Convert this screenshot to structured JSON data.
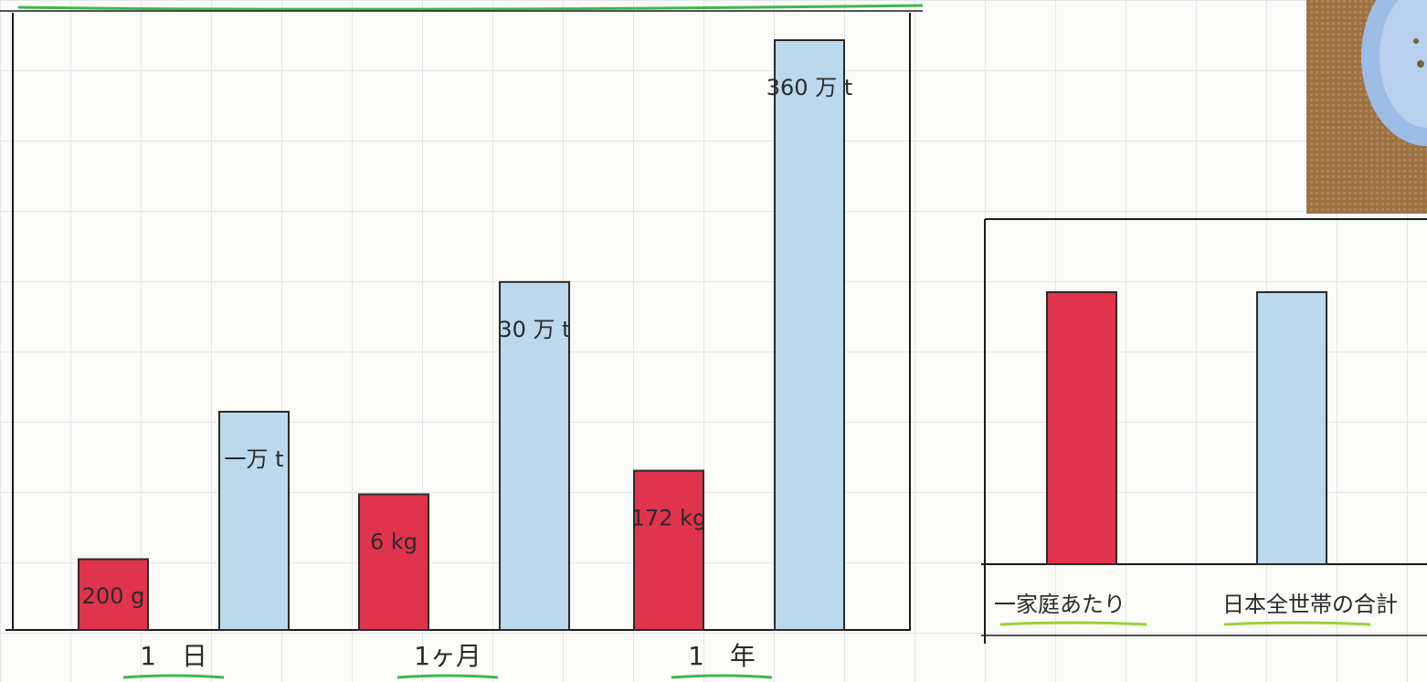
{
  "chart_data": [
    {
      "type": "bar",
      "categories": [
        "1　日",
        "1ヶ月",
        "1　年"
      ],
      "series": [
        {
          "values": [
            200,
            6,
            172
          ],
          "value_labels": [
            "200 g",
            "6 kg",
            "172 kg"
          ],
          "color": "#e0344c"
        },
        {
          "values": [
            1,
            30,
            360
          ],
          "value_labels": [
            "一万 t",
            "30 万 t",
            "360 万 t"
          ],
          "color": "#bcd8ec"
        }
      ],
      "bar_heights_relative": [
        [
          0.12,
          0.37
        ],
        [
          0.23,
          0.59
        ],
        [
          0.27,
          1.0
        ]
      ],
      "grid": true
    },
    {
      "type": "bar",
      "categories": [
        "一家庭あたり",
        "日本全世帯の合計"
      ],
      "values": [
        1,
        1
      ],
      "colors": [
        "#e0344c",
        "#bcd8ec"
      ],
      "grid": true
    }
  ],
  "photo": {
    "description_icon": "food-plate-photo"
  }
}
